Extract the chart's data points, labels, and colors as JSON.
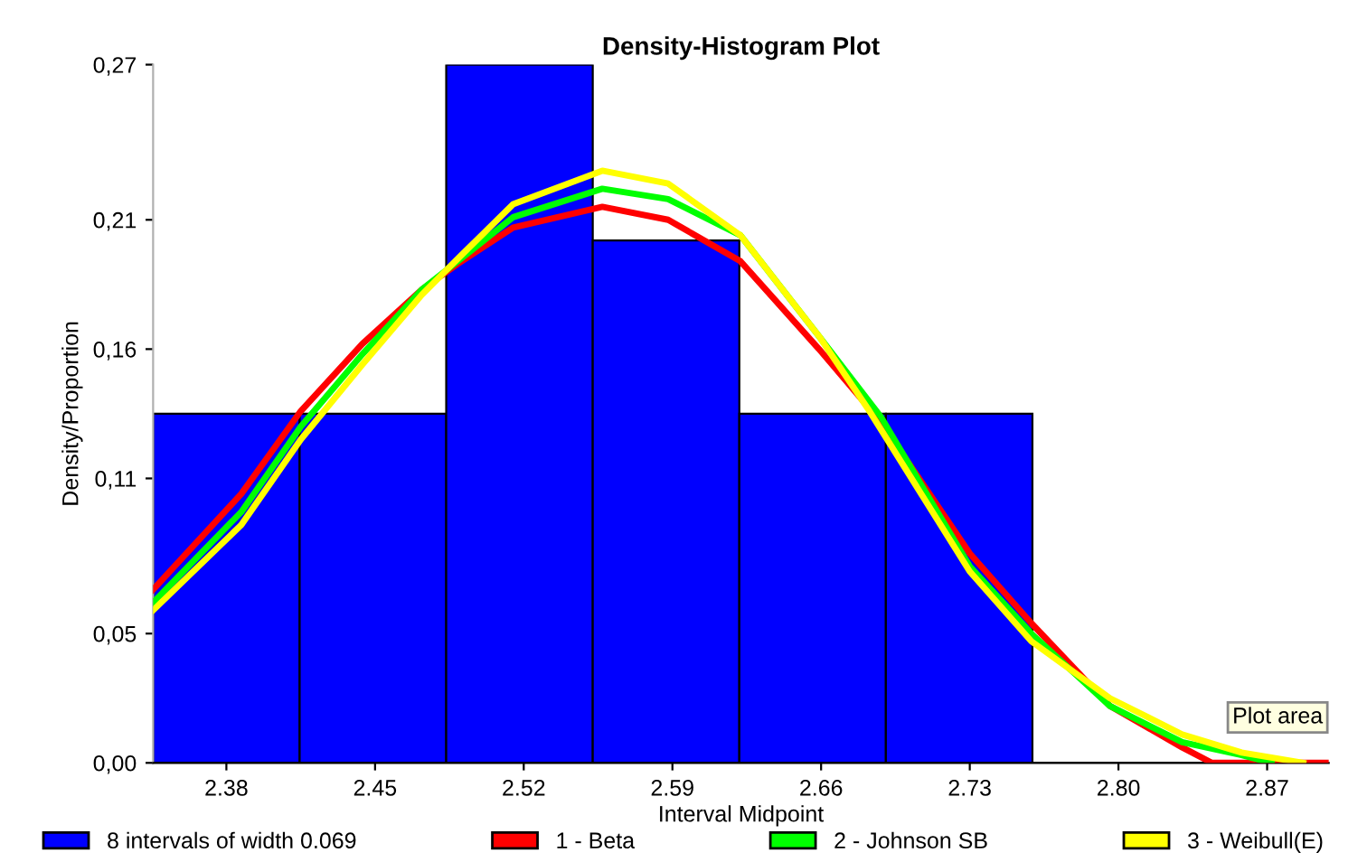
{
  "chart_data": {
    "type": "histogram",
    "title": "Density-Histogram Plot",
    "xlabel": "Interval Midpoint",
    "ylabel": "Density/Proportion",
    "xlim": [
      2.3455,
      2.899
    ],
    "ylim": [
      0,
      0.27
    ],
    "xticks": [
      {
        "value": 2.38,
        "label": "2.38"
      },
      {
        "value": 2.45,
        "label": "2.45"
      },
      {
        "value": 2.52,
        "label": "2.52"
      },
      {
        "value": 2.59,
        "label": "2.59"
      },
      {
        "value": 2.66,
        "label": "2.66"
      },
      {
        "value": 2.73,
        "label": "2.73"
      },
      {
        "value": 2.8,
        "label": "2.80"
      },
      {
        "value": 2.87,
        "label": "2.87"
      }
    ],
    "yticks": [
      {
        "value": 0,
        "label": "0,00"
      },
      {
        "value": 0.05,
        "label": "0,05"
      },
      {
        "value": 0.11,
        "label": "0,11"
      },
      {
        "value": 0.16,
        "label": "0,16"
      },
      {
        "value": 0.21,
        "label": "0,21"
      },
      {
        "value": 0.27,
        "label": "0,27"
      }
    ],
    "grid": false,
    "legend": "bottom",
    "marker": "none",
    "line_style": "solid",
    "annotations": [
      "Plot area"
    ],
    "series": [
      {
        "name": "8 intervals of width 0.069",
        "color": "#0000ff",
        "bins": [
          2.3455,
          2.4145,
          2.4835,
          2.5525,
          2.6215,
          2.6905,
          2.7595,
          2.8285,
          2.8975
        ],
        "values": [
          0.135,
          0.135,
          0.27,
          0.202,
          0.135,
          0.135,
          0,
          0
        ]
      },
      {
        "type": "line",
        "name": "1 - Beta",
        "color": "#ff0000",
        "x": [
          2.3455,
          2.387,
          2.415,
          2.444,
          2.472,
          2.489,
          2.515,
          2.557,
          2.588,
          2.622,
          2.659,
          2.688,
          2.73,
          2.759,
          2.796,
          2.83,
          2.844,
          2.898
        ],
        "values": [
          0.067,
          0.104,
          0.136,
          0.162,
          0.183,
          0.193,
          0.207,
          0.215,
          0.21,
          0.194,
          0.16,
          0.132,
          0.081,
          0.054,
          0.022,
          0.006,
          0,
          0
        ]
      },
      {
        "type": "line",
        "name": "2 - Johnson SB",
        "color": "#00ff00",
        "x": [
          2.3455,
          2.387,
          2.415,
          2.444,
          2.472,
          2.489,
          2.515,
          2.557,
          2.588,
          2.622,
          2.659,
          2.688,
          2.73,
          2.759,
          2.796,
          2.83,
          2.858,
          2.872
        ],
        "values": [
          0.062,
          0.097,
          0.13,
          0.158,
          0.183,
          0.194,
          0.211,
          0.222,
          0.218,
          0.204,
          0.165,
          0.134,
          0.076,
          0.05,
          0.022,
          0.008,
          0.003,
          0
        ]
      },
      {
        "type": "line",
        "name": "3 - Weibull(E)",
        "color": "#ffff00",
        "x": [
          2.3455,
          2.387,
          2.415,
          2.444,
          2.472,
          2.489,
          2.515,
          2.557,
          2.588,
          2.622,
          2.659,
          2.682,
          2.73,
          2.759,
          2.796,
          2.83,
          2.858,
          2.887
        ],
        "values": [
          0.059,
          0.092,
          0.125,
          0.154,
          0.181,
          0.195,
          0.216,
          0.229,
          0.224,
          0.204,
          0.165,
          0.137,
          0.074,
          0.047,
          0.025,
          0.011,
          0.004,
          0
        ]
      }
    ]
  }
}
